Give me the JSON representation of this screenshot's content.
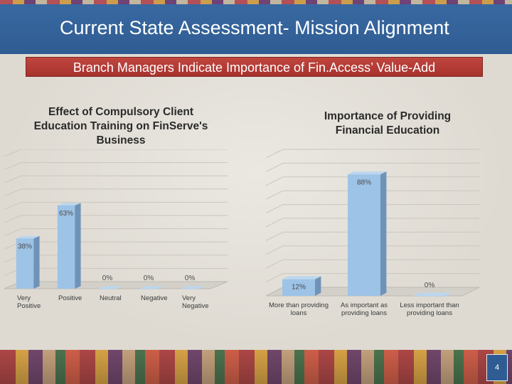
{
  "slide": {
    "title": "Current State Assessment- Mission Alignment",
    "banner": "Branch Managers Indicate Importance of Fin.Access’ Value-Add",
    "page_number": "4"
  },
  "chart_data": [
    {
      "type": "bar",
      "title": "Effect of Compulsory Client\nEducation Training on FinServe's\nBusiness",
      "categories": [
        "Very\nPositive",
        "Positive",
        "Neutral",
        "Negative",
        "Very\nNegative"
      ],
      "values": [
        38,
        63,
        0,
        0,
        0
      ],
      "value_labels": [
        "38%",
        "63%",
        "0%",
        "0%",
        "0%"
      ],
      "ylim": [
        0,
        100
      ],
      "grid": true,
      "color": "#9dc3e6"
    },
    {
      "type": "bar",
      "title": "Importance of Providing\nFinancial Education",
      "categories": [
        "More than providing\nloans",
        "As important as\nproviding loans",
        "Less important than\nproviding loans"
      ],
      "values": [
        12,
        88,
        0
      ],
      "value_labels": [
        "12%",
        "88%",
        "0%"
      ],
      "ylim": [
        0,
        100
      ],
      "grid": true,
      "color": "#9dc3e6"
    }
  ]
}
